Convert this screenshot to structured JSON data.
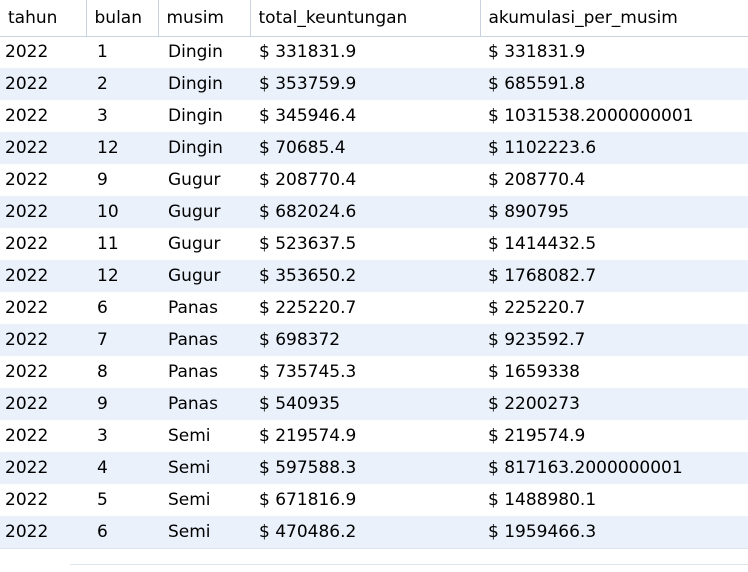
{
  "columns": [
    "tahun",
    "bulan",
    "musim",
    "total_keuntungan",
    "akumulasi_per_musim"
  ],
  "rows": [
    [
      "2022",
      "1",
      "Dingin",
      "$ 331831.9",
      "$ 331831.9"
    ],
    [
      "2022",
      "2",
      "Dingin",
      "$ 353759.9",
      "$ 685591.8"
    ],
    [
      "2022",
      "3",
      "Dingin",
      "$ 345946.4",
      "$ 1031538.2000000001"
    ],
    [
      "2022",
      "12",
      "Dingin",
      "$ 70685.4",
      "$ 1102223.6"
    ],
    [
      "2022",
      "9",
      "Gugur",
      "$ 208770.4",
      "$ 208770.4"
    ],
    [
      "2022",
      "10",
      "Gugur",
      "$ 682024.6",
      "$ 890795"
    ],
    [
      "2022",
      "11",
      "Gugur",
      "$ 523637.5",
      "$ 1414432.5"
    ],
    [
      "2022",
      "12",
      "Gugur",
      "$ 353650.2",
      "$ 1768082.7"
    ],
    [
      "2022",
      "6",
      "Panas",
      "$ 225220.7",
      "$ 225220.7"
    ],
    [
      "2022",
      "7",
      "Panas",
      "$ 698372",
      "$ 923592.7"
    ],
    [
      "2022",
      "8",
      "Panas",
      "$ 735745.3",
      "$ 1659338"
    ],
    [
      "2022",
      "9",
      "Panas",
      "$ 540935",
      "$ 2200273"
    ],
    [
      "2022",
      "3",
      "Semi",
      "$ 219574.9",
      "$ 219574.9"
    ],
    [
      "2022",
      "4",
      "Semi",
      "$ 597588.3",
      "$ 817163.2000000001"
    ],
    [
      "2022",
      "5",
      "Semi",
      "$ 671816.9",
      "$ 1488980.1"
    ],
    [
      "2022",
      "6",
      "Semi",
      "$ 470486.2",
      "$ 1959466.3"
    ]
  ],
  "colors": {
    "row_alt": "#eaf1fb",
    "row": "#ffffff",
    "grid_line": "#c9d3e0"
  }
}
